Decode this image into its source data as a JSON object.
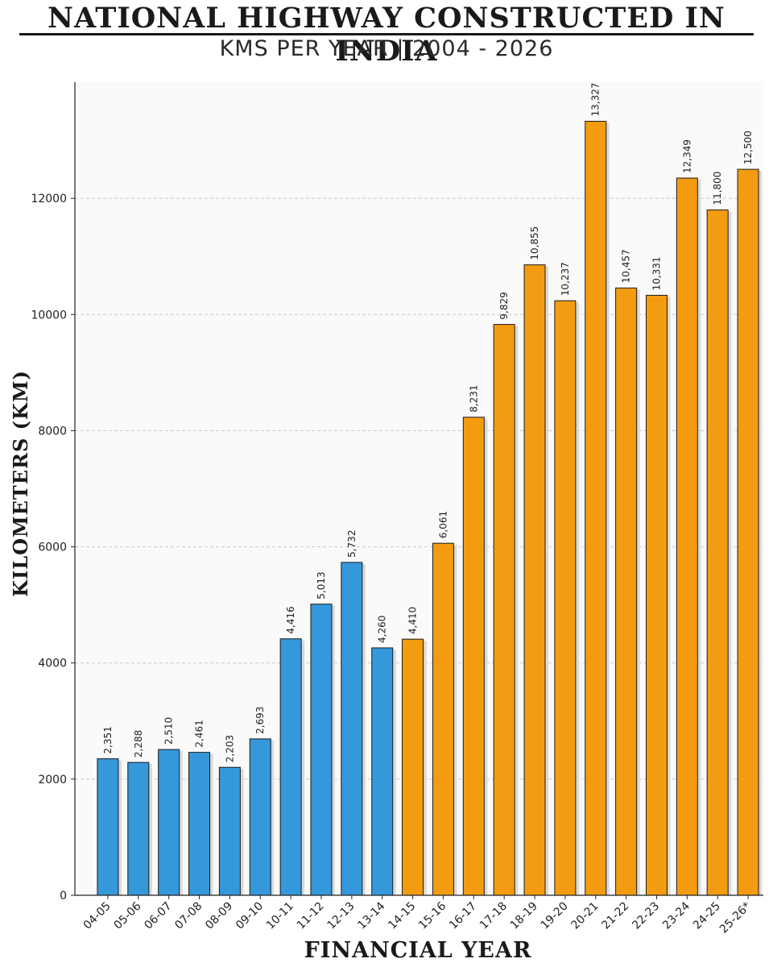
{
  "chart_data": {
    "type": "bar",
    "title": "NATIONAL HIGHWAY CONSTRUCTED IN INDIA",
    "subtitle": "KMS PER YEAR | 2004 - 2026",
    "xlabel": "FINANCIAL YEAR",
    "ylabel": "KILOMETERS (KM)",
    "ylim": [
      0,
      14000
    ],
    "yticks": [
      0,
      2000,
      4000,
      6000,
      8000,
      10000,
      12000
    ],
    "grid": "horizontal dashed",
    "categories": [
      "04-05",
      "05-06",
      "06-07",
      "07-08",
      "08-09",
      "09-10",
      "10-11",
      "11-12",
      "12-13",
      "13-14",
      "14-15",
      "15-16",
      "16-17",
      "17-18",
      "18-19",
      "19-20",
      "20-21",
      "21-22",
      "22-23",
      "23-24",
      "24-25",
      "25-26*"
    ],
    "values": [
      2351,
      2288,
      2510,
      2461,
      2203,
      2693,
      4416,
      5013,
      5732,
      4260,
      4410,
      6061,
      8231,
      9829,
      10855,
      10237,
      13327,
      10457,
      10331,
      12349,
      11800,
      12500
    ],
    "value_labels": [
      "2,351",
      "2,288",
      "2,510",
      "2,461",
      "2,203",
      "2,693",
      "4,416",
      "5,013",
      "5,732",
      "4,260",
      "4,410",
      "6,061",
      "8,231",
      "9,829",
      "10,855",
      "10,237",
      "13,327",
      "10,457",
      "10,331",
      "12,349",
      "11,800",
      "12,500"
    ],
    "colors": {
      "period_1": "#3598db",
      "period_2": "#f39c12",
      "period_2_start_index": 10,
      "shadow": "#d9d9d9",
      "plot_background": "#fafafa",
      "grid": "#c8c8c8"
    }
  }
}
